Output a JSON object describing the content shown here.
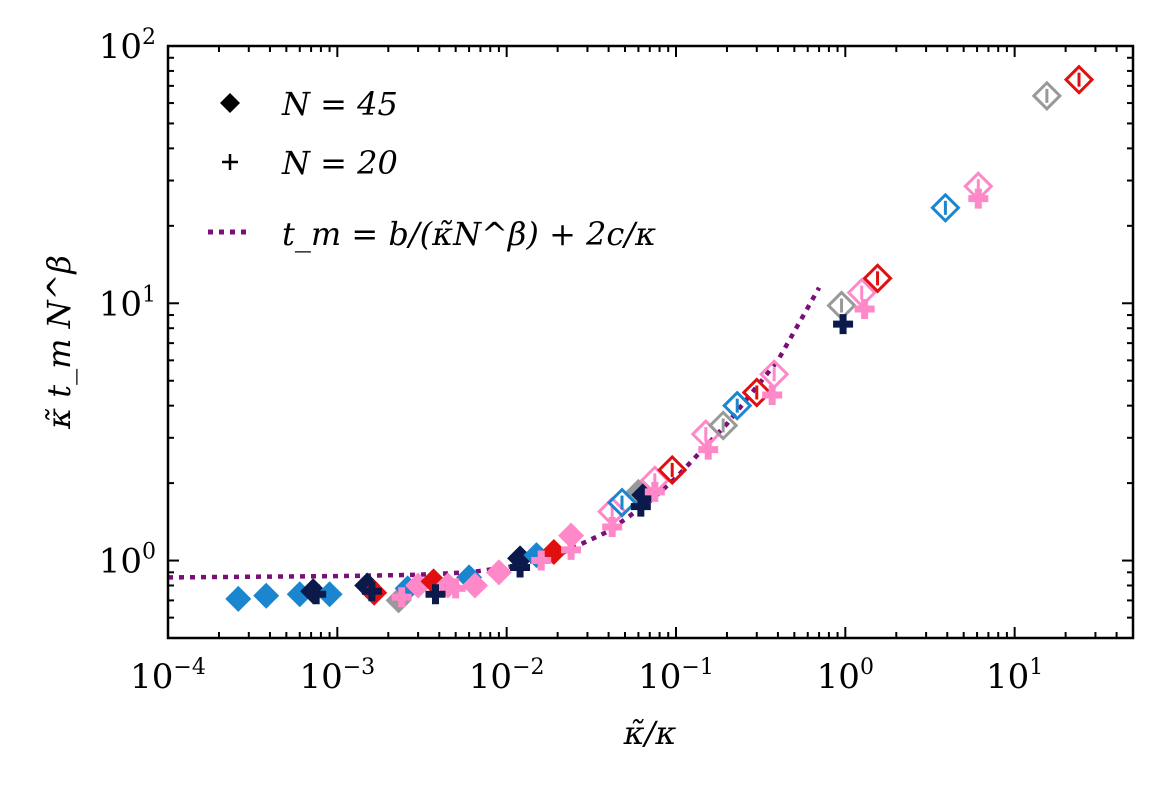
{
  "chart_data": {
    "type": "scatter",
    "xscale": "log",
    "yscale": "log",
    "xlim": [
      0.0001,
      50
    ],
    "ylim": [
      0.5,
      100
    ],
    "xlabel": "κ̃/κ",
    "ylabel": "κ̃ t_m N^β",
    "x_ticks": [
      {
        "value": 0.0001,
        "base": "10",
        "exp": "−4"
      },
      {
        "value": 0.001,
        "base": "10",
        "exp": "−3"
      },
      {
        "value": 0.01,
        "base": "10",
        "exp": "−2"
      },
      {
        "value": 0.1,
        "base": "10",
        "exp": "−1"
      },
      {
        "value": 1,
        "base": "10",
        "exp": "0"
      },
      {
        "value": 10,
        "base": "10",
        "exp": "1"
      }
    ],
    "y_ticks": [
      {
        "value": 1,
        "base": "10",
        "exp": "0"
      },
      {
        "value": 10,
        "base": "10",
        "exp": "1"
      },
      {
        "value": 100,
        "base": "10",
        "exp": "2"
      }
    ],
    "legend": {
      "position": "upper-left",
      "entries": [
        {
          "label": "N = 45",
          "marker": "diamond"
        },
        {
          "label": "N = 20",
          "marker": "plus"
        },
        {
          "label": "t_m = b/(κ̃N^β) + 2c/κ",
          "marker": "dotted-line"
        }
      ]
    },
    "series": [
      {
        "name": "N = 45 (filled diamonds)",
        "marker": "diamond",
        "points": [
          {
            "x": 0.00026,
            "y": 0.71,
            "color": "#1a86d0",
            "filled": true
          },
          {
            "x": 0.00038,
            "y": 0.73,
            "color": "#1a86d0",
            "filled": true
          },
          {
            "x": 0.0006,
            "y": 0.74,
            "color": "#1a86d0",
            "filled": true
          },
          {
            "x": 0.00072,
            "y": 0.76,
            "color": "#0b1a4a",
            "filled": true
          },
          {
            "x": 0.0009,
            "y": 0.74,
            "color": "#1a86d0",
            "filled": true
          },
          {
            "x": 0.0015,
            "y": 0.8,
            "color": "#0b1a4a",
            "filled": true
          },
          {
            "x": 0.00165,
            "y": 0.75,
            "color": "#e01010",
            "filled": true
          },
          {
            "x": 0.0023,
            "y": 0.7,
            "color": "#999999",
            "filled": true
          },
          {
            "x": 0.0026,
            "y": 0.78,
            "color": "#1a86d0",
            "filled": true
          },
          {
            "x": 0.003,
            "y": 0.8,
            "color": "#ff88c8",
            "filled": true
          },
          {
            "x": 0.0037,
            "y": 0.83,
            "color": "#e01010",
            "filled": true
          },
          {
            "x": 0.0045,
            "y": 0.8,
            "color": "#ff88c8",
            "filled": true
          },
          {
            "x": 0.006,
            "y": 0.86,
            "color": "#1a86d0",
            "filled": true
          },
          {
            "x": 0.0065,
            "y": 0.8,
            "color": "#ff88c8",
            "filled": true
          },
          {
            "x": 0.009,
            "y": 0.9,
            "color": "#ff88c8",
            "filled": true
          },
          {
            "x": 0.012,
            "y": 1.02,
            "color": "#0b1a4a",
            "filled": true
          },
          {
            "x": 0.015,
            "y": 1.05,
            "color": "#1a86d0",
            "filled": true
          },
          {
            "x": 0.019,
            "y": 1.08,
            "color": "#e01010",
            "filled": true
          },
          {
            "x": 0.024,
            "y": 1.25,
            "color": "#ff88c8",
            "filled": true
          },
          {
            "x": 0.06,
            "y": 1.85,
            "color": "#999999",
            "filled": true
          },
          {
            "x": 0.065,
            "y": 1.8,
            "color": "#0b1a4a",
            "filled": true
          }
        ]
      },
      {
        "name": "N = 45 (open diamonds)",
        "marker": "diamond",
        "points": [
          {
            "x": 0.042,
            "y": 1.55,
            "color": "#ff88c8",
            "filled": false
          },
          {
            "x": 0.048,
            "y": 1.68,
            "color": "#1a86d0",
            "filled": false
          },
          {
            "x": 0.075,
            "y": 2.05,
            "color": "#ff88c8",
            "filled": false
          },
          {
            "x": 0.095,
            "y": 2.25,
            "color": "#e01010",
            "filled": false
          },
          {
            "x": 0.15,
            "y": 3.1,
            "color": "#ff88c8",
            "filled": false
          },
          {
            "x": 0.19,
            "y": 3.35,
            "color": "#999999",
            "filled": false
          },
          {
            "x": 0.23,
            "y": 4.0,
            "color": "#1a86d0",
            "filled": false
          },
          {
            "x": 0.3,
            "y": 4.5,
            "color": "#e01010",
            "filled": false
          },
          {
            "x": 0.38,
            "y": 5.3,
            "color": "#ff88c8",
            "filled": false
          },
          {
            "x": 0.95,
            "y": 9.8,
            "color": "#999999",
            "filled": false
          },
          {
            "x": 1.25,
            "y": 11.0,
            "color": "#ff88c8",
            "filled": false
          },
          {
            "x": 1.55,
            "y": 12.5,
            "color": "#e01010",
            "filled": false
          },
          {
            "x": 3.9,
            "y": 23.5,
            "color": "#1a86d0",
            "filled": false
          },
          {
            "x": 6.1,
            "y": 28.5,
            "color": "#ff88c8",
            "filled": false
          },
          {
            "x": 15.5,
            "y": 64.0,
            "color": "#999999",
            "filled": false
          },
          {
            "x": 24.0,
            "y": 74.0,
            "color": "#e01010",
            "filled": false
          }
        ]
      },
      {
        "name": "N = 20",
        "marker": "plus",
        "points": [
          {
            "x": 0.00075,
            "y": 0.74,
            "color": "#0b1a4a"
          },
          {
            "x": 0.0016,
            "y": 0.76,
            "color": "#0b1a4a"
          },
          {
            "x": 0.0024,
            "y": 0.72,
            "color": "#ff88c8"
          },
          {
            "x": 0.0038,
            "y": 0.74,
            "color": "#0b1a4a"
          },
          {
            "x": 0.005,
            "y": 0.78,
            "color": "#ff88c8"
          },
          {
            "x": 0.009,
            "y": 0.9,
            "color": "#ff88c8"
          },
          {
            "x": 0.012,
            "y": 0.94,
            "color": "#0b1a4a"
          },
          {
            "x": 0.016,
            "y": 1.0,
            "color": "#ff88c8"
          },
          {
            "x": 0.024,
            "y": 1.1,
            "color": "#ff88c8"
          },
          {
            "x": 0.042,
            "y": 1.35,
            "color": "#ff88c8"
          },
          {
            "x": 0.062,
            "y": 1.62,
            "color": "#0b1a4a"
          },
          {
            "x": 0.075,
            "y": 1.85,
            "color": "#ff88c8"
          },
          {
            "x": 0.155,
            "y": 2.7,
            "color": "#ff88c8"
          },
          {
            "x": 0.37,
            "y": 4.4,
            "color": "#ff88c8"
          },
          {
            "x": 0.97,
            "y": 8.3,
            "color": "#0b1a4a"
          },
          {
            "x": 1.3,
            "y": 9.5,
            "color": "#ff88c8"
          },
          {
            "x": 6.1,
            "y": 25.5,
            "color": "#ff88c8"
          }
        ]
      }
    ],
    "fit_curve": {
      "label": "t_m = b/(κ̃N^β) + 2c/κ",
      "color": "#7a0f7a",
      "style": "dotted",
      "points": [
        {
          "x": 0.0001,
          "y": 0.86
        },
        {
          "x": 0.001,
          "y": 0.87
        },
        {
          "x": 0.003,
          "y": 0.88
        },
        {
          "x": 0.006,
          "y": 0.9
        },
        {
          "x": 0.01,
          "y": 0.94
        },
        {
          "x": 0.02,
          "y": 1.05
        },
        {
          "x": 0.04,
          "y": 1.3
        },
        {
          "x": 0.07,
          "y": 1.7
        },
        {
          "x": 0.1,
          "y": 2.1
        },
        {
          "x": 0.2,
          "y": 3.4
        },
        {
          "x": 0.4,
          "y": 6.0
        },
        {
          "x": 0.7,
          "y": 11.5
        }
      ]
    }
  }
}
